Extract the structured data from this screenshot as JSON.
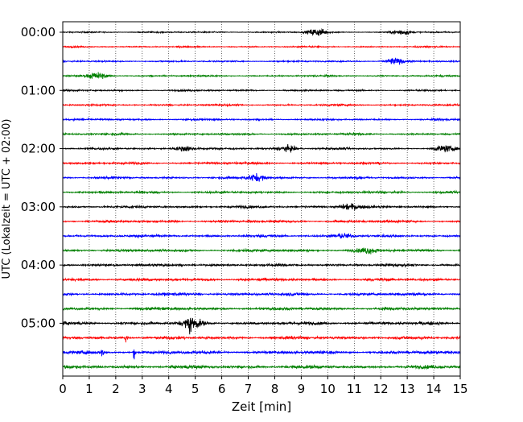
{
  "chart_data": {
    "type": "line",
    "xlabel": "Zeit  [min]",
    "ylabel": "UTC (Lokalzeit = UTC + 02:00)",
    "xlim": [
      0,
      15
    ],
    "x_ticks": [
      "0",
      "1",
      "2",
      "3",
      "4",
      "5",
      "6",
      "7",
      "8",
      "9",
      "10",
      "11",
      "12",
      "13",
      "14",
      "15"
    ],
    "y_ticks": [
      "00:00",
      "01:00",
      "02:00",
      "03:00",
      "04:00",
      "05:00"
    ],
    "grid": "vertical dotted lines at each minute",
    "trace_interval_minutes": 15,
    "trace_start_times": [
      "00:00",
      "00:15",
      "00:30",
      "00:45",
      "01:00",
      "01:15",
      "01:30",
      "01:45",
      "02:00",
      "02:15",
      "02:30",
      "02:45",
      "03:00",
      "03:15",
      "03:30",
      "03:45",
      "04:00",
      "04:15",
      "04:30",
      "04:45",
      "05:00",
      "05:15",
      "05:30",
      "05:45"
    ],
    "trace_colors": [
      "#000000",
      "#ff0000",
      "#0000ff",
      "#008000"
    ],
    "events": [
      {
        "trace": 0,
        "minute": 9.6,
        "amp": 0.45
      },
      {
        "trace": 0,
        "minute": 12.8,
        "amp": 0.3
      },
      {
        "trace": 2,
        "minute": 12.5,
        "amp": 0.4
      },
      {
        "trace": 3,
        "minute": 1.3,
        "amp": 0.4
      },
      {
        "trace": 8,
        "minute": 4.6,
        "amp": 0.35
      },
      {
        "trace": 8,
        "minute": 8.5,
        "amp": 0.35
      },
      {
        "trace": 8,
        "minute": 14.4,
        "amp": 0.35
      },
      {
        "trace": 10,
        "minute": 7.3,
        "amp": 0.45
      },
      {
        "trace": 12,
        "minute": 10.8,
        "amp": 0.35
      },
      {
        "trace": 14,
        "minute": 10.6,
        "amp": 0.3
      },
      {
        "trace": 15,
        "minute": 11.5,
        "amp": 0.3
      },
      {
        "trace": 20,
        "minute": 4.9,
        "amp": 0.6
      },
      {
        "trace": 20,
        "minute": 4.8,
        "amp": 1.0,
        "spike": true
      },
      {
        "trace": 21,
        "minute": 2.4,
        "amp": 0.9,
        "spike": true
      },
      {
        "trace": 22,
        "minute": 1.5,
        "amp": 0.8,
        "spike": true
      },
      {
        "trace": 22,
        "minute": 2.7,
        "amp": 0.7,
        "spike": true
      }
    ]
  }
}
